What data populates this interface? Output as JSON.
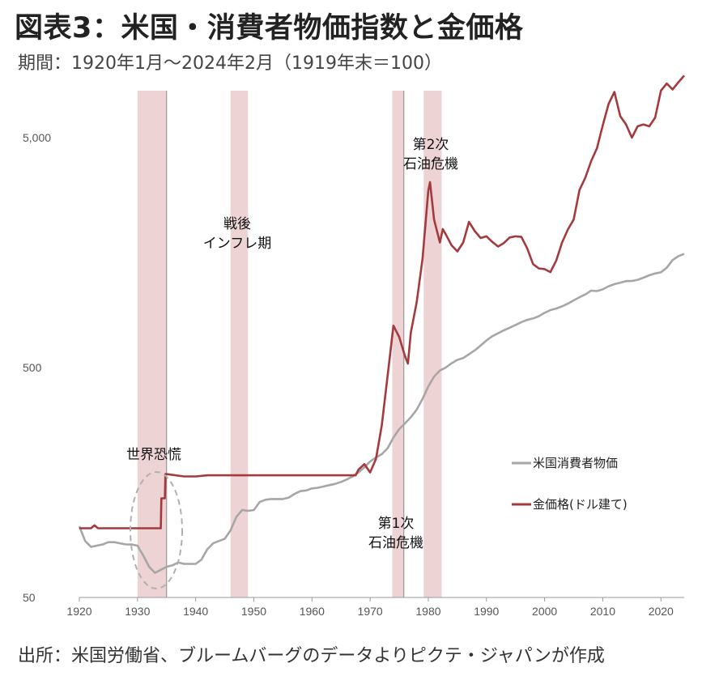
{
  "header": {
    "title": "図表3：米国・消費者物価指数と金価格",
    "subtitle": "期間：1920年1月～2024年2月（1919年末＝100）"
  },
  "footer": {
    "source": "出所：米国労働省、ブルームバーグのデータよりピクテ・ジャパンが作成"
  },
  "chart_data": {
    "type": "line",
    "title": "図表3：米国・消費者物価指数と金価格",
    "xlabel": "",
    "ylabel": "",
    "yscale": "log",
    "xlim": [
      1920,
      2024
    ],
    "ylim": [
      50,
      8000
    ],
    "x_ticks": [
      1920,
      1930,
      1940,
      1950,
      1960,
      1970,
      1980,
      1990,
      2000,
      2010,
      2020
    ],
    "y_ticks": [
      {
        "value": 50,
        "label": "50"
      },
      {
        "value": 500,
        "label": "500"
      },
      {
        "value": 5000,
        "label": "5,000"
      }
    ],
    "grid": false,
    "legend_position": "lower-right",
    "series": [
      {
        "name": "米国消費者物価",
        "color": "#a6a6a6",
        "points": [
          [
            1920,
            102
          ],
          [
            1921,
            88
          ],
          [
            1922,
            83
          ],
          [
            1923,
            84
          ],
          [
            1924,
            85
          ],
          [
            1925,
            87
          ],
          [
            1926,
            87
          ],
          [
            1927,
            86
          ],
          [
            1928,
            85
          ],
          [
            1929,
            85
          ],
          [
            1930,
            84
          ],
          [
            1931,
            76
          ],
          [
            1932,
            68
          ],
          [
            1933,
            64
          ],
          [
            1934,
            66
          ],
          [
            1935,
            68
          ],
          [
            1936,
            69
          ],
          [
            1937,
            71
          ],
          [
            1938,
            70
          ],
          [
            1939,
            70
          ],
          [
            1940,
            70
          ],
          [
            1941,
            73
          ],
          [
            1942,
            81
          ],
          [
            1943,
            86
          ],
          [
            1944,
            88
          ],
          [
            1945,
            90
          ],
          [
            1946,
            98
          ],
          [
            1947,
            112
          ],
          [
            1948,
            120
          ],
          [
            1949,
            119
          ],
          [
            1950,
            120
          ],
          [
            1951,
            130
          ],
          [
            1952,
            133
          ],
          [
            1953,
            134
          ],
          [
            1954,
            134
          ],
          [
            1955,
            134
          ],
          [
            1956,
            136
          ],
          [
            1957,
            141
          ],
          [
            1958,
            145
          ],
          [
            1959,
            146
          ],
          [
            1960,
            149
          ],
          [
            1961,
            150
          ],
          [
            1962,
            152
          ],
          [
            1963,
            154
          ],
          [
            1964,
            156
          ],
          [
            1965,
            159
          ],
          [
            1966,
            163
          ],
          [
            1967,
            168
          ],
          [
            1968,
            175
          ],
          [
            1969,
            184
          ],
          [
            1970,
            195
          ],
          [
            1971,
            203
          ],
          [
            1972,
            210
          ],
          [
            1973,
            223
          ],
          [
            1974,
            248
          ],
          [
            1975,
            270
          ],
          [
            1976,
            286
          ],
          [
            1977,
            304
          ],
          [
            1978,
            328
          ],
          [
            1979,
            365
          ],
          [
            1980,
            414
          ],
          [
            1981,
            457
          ],
          [
            1982,
            485
          ],
          [
            1983,
            500
          ],
          [
            1984,
            522
          ],
          [
            1985,
            540
          ],
          [
            1986,
            550
          ],
          [
            1987,
            571
          ],
          [
            1988,
            594
          ],
          [
            1989,
            623
          ],
          [
            1990,
            656
          ],
          [
            1991,
            684
          ],
          [
            1992,
            705
          ],
          [
            1993,
            726
          ],
          [
            1994,
            745
          ],
          [
            1995,
            766
          ],
          [
            1996,
            788
          ],
          [
            1997,
            806
          ],
          [
            1998,
            818
          ],
          [
            1999,
            836
          ],
          [
            2000,
            865
          ],
          [
            2001,
            889
          ],
          [
            2002,
            903
          ],
          [
            2003,
            923
          ],
          [
            2004,
            948
          ],
          [
            2005,
            980
          ],
          [
            2006,
            1011
          ],
          [
            2007,
            1040
          ],
          [
            2008,
            1080
          ],
          [
            2009,
            1076
          ],
          [
            2010,
            1094
          ],
          [
            2011,
            1128
          ],
          [
            2012,
            1152
          ],
          [
            2013,
            1169
          ],
          [
            2014,
            1188
          ],
          [
            2015,
            1189
          ],
          [
            2016,
            1204
          ],
          [
            2017,
            1230
          ],
          [
            2018,
            1260
          ],
          [
            2019,
            1282
          ],
          [
            2020,
            1298
          ],
          [
            2021,
            1358
          ],
          [
            2022,
            1466
          ],
          [
            2023,
            1525
          ],
          [
            2024,
            1560
          ]
        ]
      },
      {
        "name": "金価格(ドル建て)",
        "color": "#a33a3e",
        "points": [
          [
            1920,
            100
          ],
          [
            1922,
            100
          ],
          [
            1922.6,
            103
          ],
          [
            1923.2,
            100
          ],
          [
            1933,
            100
          ],
          [
            1934,
            100
          ],
          [
            1934.1,
            135
          ],
          [
            1934.7,
            135
          ],
          [
            1934.8,
            172
          ],
          [
            1935,
            172
          ],
          [
            1938,
            168
          ],
          [
            1940,
            168
          ],
          [
            1942,
            170
          ],
          [
            1950,
            170
          ],
          [
            1960,
            170
          ],
          [
            1967.5,
            170
          ],
          [
            1968,
            180
          ],
          [
            1969,
            190
          ],
          [
            1970,
            175
          ],
          [
            1971,
            200
          ],
          [
            1972,
            280
          ],
          [
            1973,
            460
          ],
          [
            1974,
            760
          ],
          [
            1975,
            680
          ],
          [
            1976,
            560
          ],
          [
            1976.5,
            520
          ],
          [
            1977,
            710
          ],
          [
            1978,
            960
          ],
          [
            1979,
            1480
          ],
          [
            1980,
            2950
          ],
          [
            1980.3,
            3200
          ],
          [
            1981,
            2200
          ],
          [
            1982,
            1750
          ],
          [
            1982.5,
            2000
          ],
          [
            1983,
            1900
          ],
          [
            1984,
            1700
          ],
          [
            1985,
            1600
          ],
          [
            1986,
            1750
          ],
          [
            1987,
            2150
          ],
          [
            1988,
            1960
          ],
          [
            1989,
            1830
          ],
          [
            1990,
            1860
          ],
          [
            1991,
            1760
          ],
          [
            1992,
            1680
          ],
          [
            1993,
            1740
          ],
          [
            1994,
            1840
          ],
          [
            1995,
            1860
          ],
          [
            1996,
            1850
          ],
          [
            1997,
            1650
          ],
          [
            1998,
            1410
          ],
          [
            1999,
            1350
          ],
          [
            2000,
            1340
          ],
          [
            2001,
            1300
          ],
          [
            2002,
            1460
          ],
          [
            2003,
            1750
          ],
          [
            2004,
            1990
          ],
          [
            2005,
            2200
          ],
          [
            2006,
            2960
          ],
          [
            2007,
            3350
          ],
          [
            2008,
            3950
          ],
          [
            2009,
            4500
          ],
          [
            2010,
            5650
          ],
          [
            2011,
            7000
          ],
          [
            2012,
            7900
          ],
          [
            2013,
            6200
          ],
          [
            2014,
            5700
          ],
          [
            2015,
            5000
          ],
          [
            2016,
            5600
          ],
          [
            2017,
            5700
          ],
          [
            2018,
            5600
          ],
          [
            2019,
            6100
          ],
          [
            2020,
            8000
          ],
          [
            2021,
            8600
          ],
          [
            2022,
            8100
          ],
          [
            2023,
            8700
          ],
          [
            2024,
            9300
          ]
        ]
      }
    ],
    "shaded_periods": [
      [
        1930,
        1935
      ],
      [
        1946,
        1949
      ],
      [
        1973.8,
        1975.8
      ],
      [
        1979.2,
        1982.3
      ]
    ],
    "annotations": [
      {
        "id": "depression",
        "lines": [
          "世界恐慌"
        ]
      },
      {
        "id": "postwar",
        "lines": [
          "戦後",
          "インフレ期"
        ]
      },
      {
        "id": "oil1",
        "lines": [
          "第1次",
          "石油危機"
        ]
      },
      {
        "id": "oil2",
        "lines": [
          "第2次",
          "石油危機"
        ]
      }
    ]
  }
}
